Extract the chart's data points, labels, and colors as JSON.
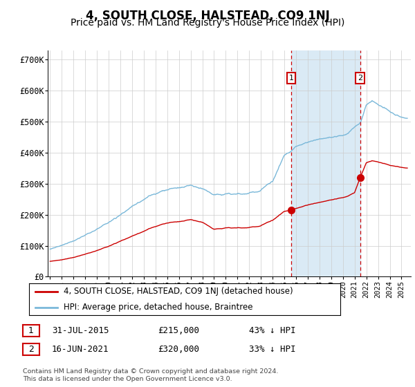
{
  "title": "4, SOUTH CLOSE, HALSTEAD, CO9 1NJ",
  "subtitle": "Price paid vs. HM Land Registry's House Price Index (HPI)",
  "title_fontsize": 12,
  "subtitle_fontsize": 10,
  "ylabel_ticks": [
    "£0",
    "£100K",
    "£200K",
    "£300K",
    "£400K",
    "£500K",
    "£600K",
    "£700K"
  ],
  "ytick_values": [
    0,
    100000,
    200000,
    300000,
    400000,
    500000,
    600000,
    700000
  ],
  "ylim": [
    0,
    730000
  ],
  "xlim_start": 1994.8,
  "xlim_end": 2025.8,
  "xticks": [
    1995,
    1996,
    1997,
    1998,
    1999,
    2000,
    2001,
    2002,
    2003,
    2004,
    2005,
    2006,
    2007,
    2008,
    2009,
    2010,
    2011,
    2012,
    2013,
    2014,
    2015,
    2016,
    2017,
    2018,
    2019,
    2020,
    2021,
    2022,
    2023,
    2024,
    2025
  ],
  "sale1_x": 2015.58,
  "sale1_y": 215000,
  "sale1_label": "1",
  "sale1_date": "31-JUL-2015",
  "sale1_price": "£215,000",
  "sale1_hpi": "43% ↓ HPI",
  "sale2_x": 2021.46,
  "sale2_y": 320000,
  "sale2_label": "2",
  "sale2_date": "16-JUN-2021",
  "sale2_price": "£320,000",
  "sale2_hpi": "33% ↓ HPI",
  "hpi_color": "#7ab8d9",
  "price_color": "#cc0000",
  "shade_color": "#daeaf5",
  "marker_box_color": "#cc0000",
  "grid_color": "#cccccc",
  "background_color": "#ffffff",
  "footnote": "Contains HM Land Registry data © Crown copyright and database right 2024.\nThis data is licensed under the Open Government Licence v3.0.",
  "legend_label_red": "4, SOUTH CLOSE, HALSTEAD, CO9 1NJ (detached house)",
  "legend_label_blue": "HPI: Average price, detached house, Braintree"
}
